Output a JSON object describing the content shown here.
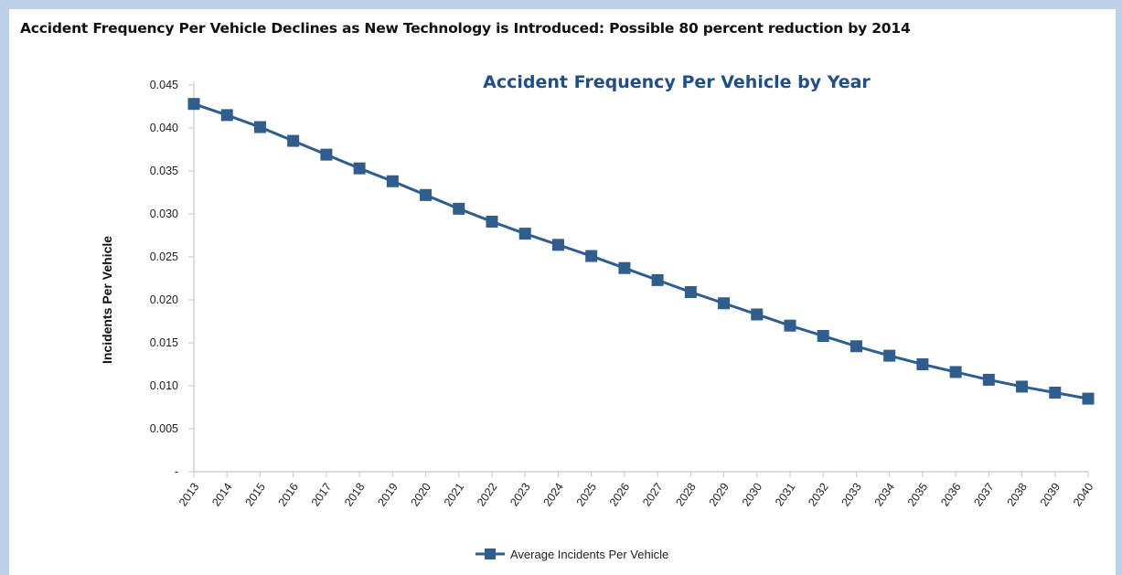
{
  "headline": "Accident Frequency Per Vehicle Declines as New Technology is Introduced: Possible 80 percent reduction by 2014",
  "colors": {
    "series": "#2e5d8e",
    "axis": "#c8c8c8",
    "title": "#1f4e8c",
    "background_frame": "#bcd0e8"
  },
  "chart_data": {
    "type": "line",
    "title": "Accident Frequency Per Vehicle by Year",
    "xlabel": "",
    "ylabel": "Incidents Per Vehicle",
    "ylim": [
      0,
      0.045
    ],
    "yticks": [
      "-",
      "0.005",
      "0.010",
      "0.015",
      "0.020",
      "0.025",
      "0.030",
      "0.035",
      "0.040",
      "0.045"
    ],
    "ytick_values": [
      0,
      0.005,
      0.01,
      0.015,
      0.02,
      0.025,
      0.03,
      0.035,
      0.04,
      0.045
    ],
    "categories": [
      "2013",
      "2014",
      "2015",
      "2016",
      "2017",
      "2018",
      "2019",
      "2020",
      "2021",
      "2022",
      "2023",
      "2024",
      "2025",
      "2026",
      "2027",
      "2028",
      "2029",
      "2030",
      "2031",
      "2032",
      "2033",
      "2034",
      "2035",
      "2036",
      "2037",
      "2038",
      "2039",
      "2040"
    ],
    "series": [
      {
        "name": "Average Incidents Per Vehicle",
        "marker": "square",
        "values": [
          0.0428,
          0.0415,
          0.0401,
          0.0385,
          0.0369,
          0.0353,
          0.0338,
          0.0322,
          0.0306,
          0.0291,
          0.0277,
          0.0264,
          0.0251,
          0.0237,
          0.0223,
          0.0209,
          0.0196,
          0.0183,
          0.017,
          0.0158,
          0.0146,
          0.0135,
          0.0125,
          0.0116,
          0.0107,
          0.0099,
          0.0092,
          0.0085
        ]
      }
    ],
    "grid": false,
    "legend": "bottom"
  }
}
